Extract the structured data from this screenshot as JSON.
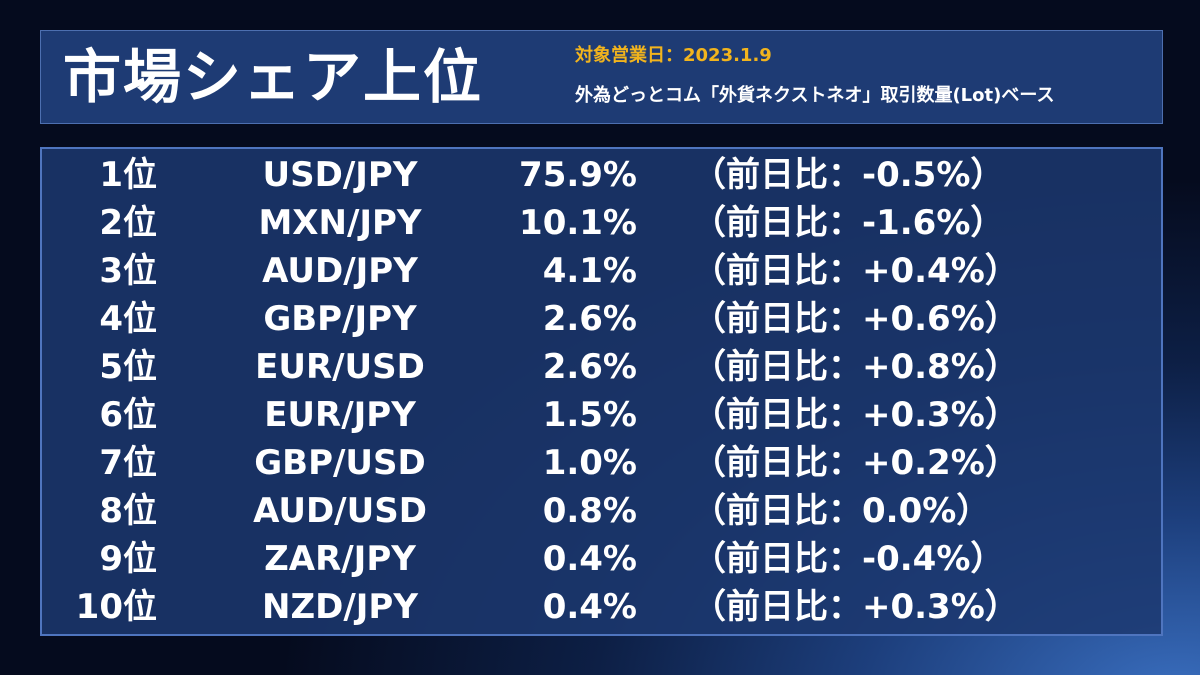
{
  "header": {
    "title": "市場シェア上位",
    "date": "対象営業日：2023.1.9",
    "basis": "外為どっとコム「外貨ネクストネオ」取引数量(Lot)ベース"
  },
  "rows": [
    {
      "rank": "1位",
      "pair": "USD/JPY",
      "share": "75.9%",
      "change": "（前日比：-0.5%）"
    },
    {
      "rank": "2位",
      "pair": "MXN/JPY",
      "share": "10.1%",
      "change": "（前日比：-1.6%）"
    },
    {
      "rank": "3位",
      "pair": "AUD/JPY",
      "share": "4.1%",
      "change": "（前日比：+0.4%）"
    },
    {
      "rank": "4位",
      "pair": "GBP/JPY",
      "share": "2.6%",
      "change": "（前日比：+0.6%）"
    },
    {
      "rank": "5位",
      "pair": "EUR/USD",
      "share": "2.6%",
      "change": "（前日比：+0.8%）"
    },
    {
      "rank": "6位",
      "pair": "EUR/JPY",
      "share": "1.5%",
      "change": "（前日比：+0.3%）"
    },
    {
      "rank": "7位",
      "pair": "GBP/USD",
      "share": "1.0%",
      "change": "（前日比：+0.2%）"
    },
    {
      "rank": "8位",
      "pair": "AUD/USD",
      "share": "0.8%",
      "change": "（前日比：0.0%）"
    },
    {
      "rank": "9位",
      "pair": "ZAR/JPY",
      "share": "0.4%",
      "change": "（前日比：-0.4%）"
    },
    {
      "rank": "10位",
      "pair": "NZD/JPY",
      "share": "0.4%",
      "change": "（前日比：+0.3%）"
    }
  ],
  "colors": {
    "accent": "#f2b41d",
    "header_bg": "#1e3b74",
    "panel_bg": "#1c3870",
    "border": "#4f75bf",
    "text": "#ffffff"
  }
}
